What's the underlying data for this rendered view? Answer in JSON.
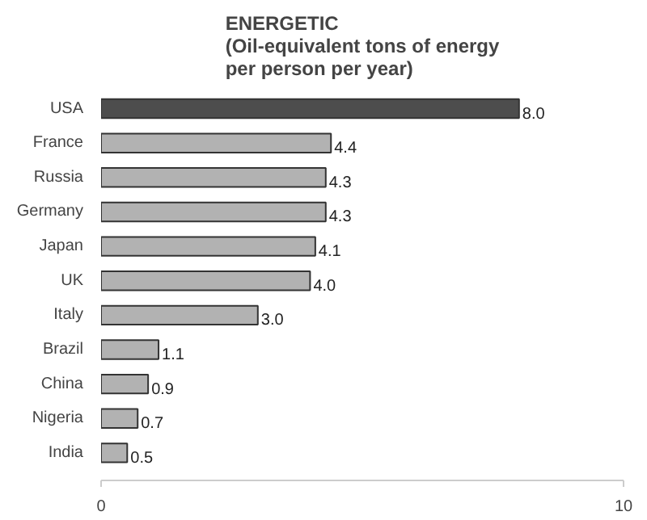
{
  "chart_data": {
    "type": "bar",
    "orientation": "horizontal",
    "title": "ENERGETIC\n(Oil-equivalent tons of energy\nper person per year)",
    "categories": [
      "USA",
      "France",
      "Russia",
      "Germany",
      "Japan",
      "UK",
      "Italy",
      "Brazil",
      "China",
      "Nigeria",
      "India"
    ],
    "values": [
      8.0,
      4.4,
      4.3,
      4.3,
      4.1,
      4.0,
      3.0,
      1.1,
      0.9,
      0.7,
      0.5
    ],
    "colors": [
      "#4d4d4d",
      "#b2b2b2",
      "#b2b2b2",
      "#b2b2b2",
      "#b2b2b2",
      "#b2b2b2",
      "#b2b2b2",
      "#b2b2b2",
      "#b2b2b2",
      "#b2b2b2",
      "#b2b2b2"
    ],
    "value_labels": [
      "8.0",
      "4.4",
      "4.3",
      "4.3",
      "4.1",
      "4.0",
      "3.0",
      "1.1",
      "0.9",
      "0.7",
      "0.5"
    ],
    "xlim": [
      0,
      10
    ],
    "xticks": [
      0,
      10
    ],
    "grid": false
  }
}
